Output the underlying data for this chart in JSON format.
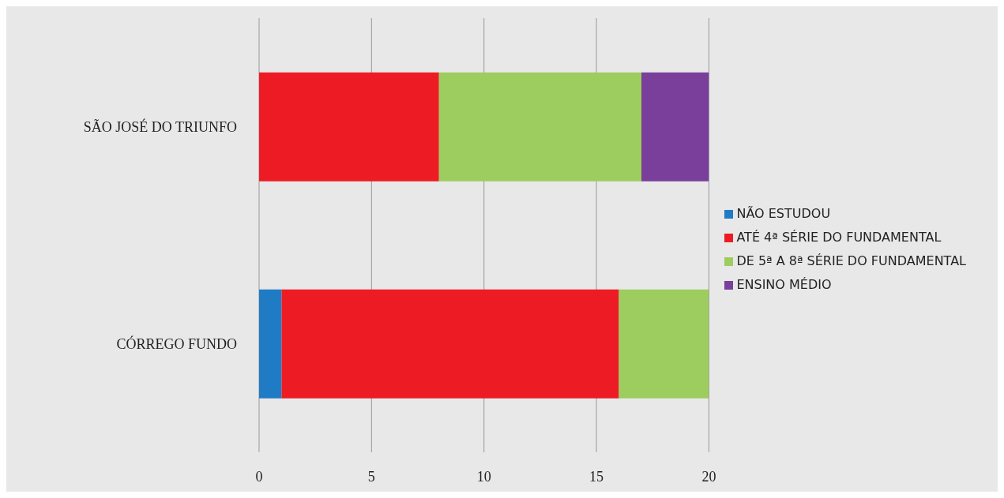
{
  "chart_data": {
    "type": "bar",
    "orientation": "horizontal",
    "stacked": true,
    "categories": [
      "SÃO JOSÉ DO TRIUNFO",
      "CÓRREGO FUNDO"
    ],
    "series": [
      {
        "name": "NÃO ESTUDOU",
        "color": "#1f7bc4",
        "values": [
          0,
          1
        ]
      },
      {
        "name": "ATÉ 4ª SÉRIE DO FUNDAMENTAL",
        "color": "#ed1c24",
        "values": [
          8,
          15
        ]
      },
      {
        "name": "DE 5ª A 8ª SÉRIE DO FUNDAMENTAL",
        "color": "#9dcd5f",
        "values": [
          9,
          4
        ]
      },
      {
        "name": "ENSINO MÉDIO",
        "color": "#7a3f9a",
        "values": [
          3,
          0
        ]
      }
    ],
    "xlim": [
      0,
      20
    ],
    "xticks": [
      0,
      5,
      10,
      15,
      20
    ],
    "grid": "x",
    "legend": "right"
  }
}
